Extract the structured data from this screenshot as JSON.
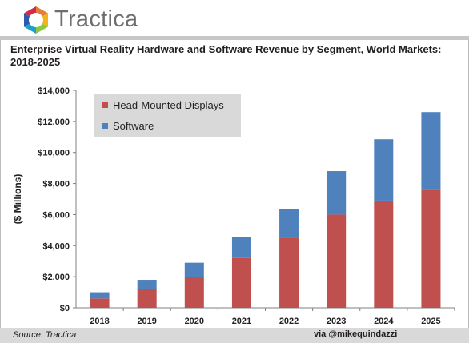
{
  "brand": {
    "name": "Tractica"
  },
  "footer": {
    "source": "Source: Tractica",
    "credit": "via @mikequindazzi"
  },
  "colors": {
    "hmd": "#c0504d",
    "software": "#4f81bd",
    "legend_bg": "#d9d9d9"
  },
  "chart_data": {
    "type": "bar",
    "stacked": true,
    "title": "Enterprise Virtual Reality Hardware and Software Revenue by Segment, World Markets: 2018-2025",
    "xlabel": "",
    "ylabel": "($ Millions)",
    "ylim": [
      0,
      14000
    ],
    "yticks": [
      0,
      2000,
      4000,
      6000,
      8000,
      10000,
      12000,
      14000
    ],
    "ytick_labels": [
      "$0",
      "$2,000",
      "$4,000",
      "$6,000",
      "$8,000",
      "$10,000",
      "$12,000",
      "$14,000"
    ],
    "categories": [
      "2018",
      "2019",
      "2020",
      "2021",
      "2022",
      "2023",
      "2024",
      "2025"
    ],
    "series": [
      {
        "name": "Head-Mounted Displays",
        "values": [
          600,
          1200,
          2000,
          3200,
          4500,
          6000,
          6900,
          7600
        ]
      },
      {
        "name": "Software",
        "values": [
          400,
          600,
          900,
          1350,
          1850,
          2800,
          3950,
          5000
        ]
      }
    ],
    "grid": false,
    "legend": "top-left"
  }
}
